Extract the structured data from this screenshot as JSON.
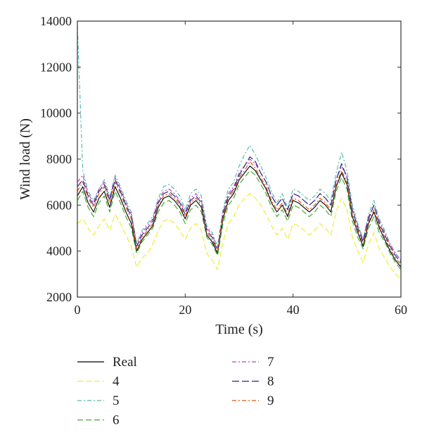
{
  "chart_data": {
    "type": "line",
    "title": "",
    "xlabel": "Time (s)",
    "ylabel": "Wind load (N)",
    "xlim": [
      0,
      60
    ],
    "ylim": [
      2000,
      14000
    ],
    "x_ticks": [
      "0",
      "20",
      "40",
      "60"
    ],
    "y_ticks": [
      "2000",
      "4000",
      "6000",
      "8000",
      "10000",
      "12000",
      "14000"
    ],
    "grid": false,
    "legend_position": "bottom",
    "x": [
      0,
      1,
      2,
      3,
      4,
      5,
      6,
      7,
      8,
      9,
      10,
      11,
      12,
      13,
      14,
      15,
      16,
      17,
      18,
      19,
      20,
      21,
      22,
      23,
      24,
      25,
      26,
      27,
      28,
      29,
      30,
      31,
      32,
      33,
      34,
      35,
      36,
      37,
      38,
      39,
      40,
      41,
      42,
      43,
      44,
      45,
      46,
      47,
      48,
      49,
      50,
      51,
      52,
      53,
      54,
      55,
      56,
      57,
      58,
      59,
      60
    ],
    "series": [
      {
        "name": "Real",
        "color": "#000000",
        "dash": "",
        "values": [
          6400,
          6800,
          6100,
          5700,
          6300,
          6600,
          5900,
          6800,
          6300,
          5700,
          5200,
          4000,
          4500,
          4800,
          5100,
          5900,
          6300,
          6400,
          6200,
          5900,
          5400,
          6000,
          6200,
          5900,
          4700,
          4400,
          3900,
          5400,
          6200,
          6500,
          7100,
          7400,
          7700,
          7500,
          7100,
          6700,
          6100,
          5700,
          6000,
          5500,
          6200,
          6100,
          5900,
          5700,
          5900,
          6200,
          6000,
          5700,
          6800,
          7400,
          6900,
          5500,
          4800,
          4200,
          5200,
          5700,
          5000,
          4500,
          4000,
          3600,
          3300
        ]
      },
      {
        "name": "4",
        "color": "#eeee33",
        "dash": "8,4",
        "values": [
          5200,
          5400,
          5000,
          4700,
          5100,
          5400,
          4900,
          5600,
          5200,
          4700,
          4200,
          3300,
          3700,
          3900,
          4300,
          4900,
          5300,
          5400,
          5200,
          4900,
          4500,
          5000,
          5200,
          4900,
          3900,
          3600,
          3200,
          4400,
          5200,
          5500,
          6000,
          6300,
          6500,
          6300,
          6000,
          5600,
          5100,
          4700,
          5000,
          4500,
          5200,
          5100,
          4900,
          4700,
          4900,
          5200,
          5000,
          4700,
          5700,
          6300,
          5800,
          4600,
          4000,
          3500,
          4300,
          4800,
          4100,
          3700,
          3300,
          3000,
          2800
        ]
      },
      {
        "name": "5",
        "color": "#55bbaa",
        "dash": "6,3,2,3",
        "values": [
          13800,
          7500,
          6600,
          6200,
          6700,
          7100,
          6400,
          7300,
          6800,
          6200,
          5700,
          4300,
          4900,
          5200,
          5500,
          6300,
          6800,
          6900,
          6700,
          6400,
          5800,
          6500,
          6700,
          6400,
          5100,
          4800,
          4200,
          5800,
          6700,
          7000,
          7700,
          8200,
          8600,
          8200,
          7700,
          7200,
          6600,
          6100,
          6500,
          5900,
          6700,
          6600,
          6400,
          6200,
          6400,
          6700,
          6500,
          6200,
          7400,
          8300,
          7500,
          6000,
          5200,
          4500,
          5600,
          6200,
          5400,
          4900,
          4300,
          3900,
          3600
        ]
      },
      {
        "name": "6",
        "color": "#44aa33",
        "dash": "8,4",
        "values": [
          6200,
          6600,
          5900,
          5500,
          6100,
          6400,
          5700,
          6600,
          6100,
          5500,
          5000,
          3900,
          4400,
          4700,
          5000,
          5700,
          6100,
          6200,
          6000,
          5700,
          5200,
          5800,
          6000,
          5700,
          4600,
          4300,
          3800,
          5200,
          6000,
          6300,
          6900,
          7200,
          7500,
          7300,
          6900,
          6500,
          5900,
          5500,
          5800,
          5300,
          6000,
          5900,
          5700,
          5500,
          5700,
          6000,
          5800,
          5500,
          6600,
          7200,
          6700,
          5300,
          4600,
          4100,
          5000,
          5500,
          4800,
          4400,
          3900,
          3500,
          3200
        ]
      },
      {
        "name": "7",
        "color": "#bb44bb",
        "dash": "6,3,2,3",
        "values": [
          7000,
          7300,
          6500,
          6100,
          6700,
          7000,
          6300,
          7200,
          6700,
          6100,
          5600,
          4300,
          4800,
          5100,
          5400,
          6200,
          6600,
          6700,
          6500,
          6200,
          5700,
          6300,
          6500,
          6200,
          5000,
          4700,
          4100,
          5700,
          6500,
          6800,
          7400,
          7700,
          8000,
          7800,
          7400,
          7000,
          6400,
          6000,
          6300,
          5800,
          6500,
          6400,
          6200,
          6000,
          6200,
          6500,
          6300,
          6000,
          7100,
          7700,
          7200,
          5800,
          5100,
          4500,
          5500,
          6000,
          5300,
          4800,
          4300,
          3900,
          3600
        ]
      },
      {
        "name": "8",
        "color": "#2a2a88",
        "dash": "10,4",
        "values": [
          6800,
          7100,
          6400,
          6000,
          6600,
          6900,
          6200,
          7100,
          6600,
          6000,
          5500,
          4200,
          4700,
          5000,
          5300,
          6100,
          6500,
          6600,
          6400,
          6100,
          5600,
          6200,
          6400,
          6100,
          4900,
          4600,
          4000,
          5600,
          6400,
          6700,
          7300,
          7700,
          8100,
          7900,
          7400,
          7000,
          6400,
          6000,
          6300,
          5800,
          6500,
          6400,
          6200,
          6000,
          6200,
          6500,
          6300,
          6000,
          7100,
          7800,
          7200,
          5800,
          5000,
          4400,
          5400,
          6000,
          5200,
          4700,
          4200,
          3800,
          3500
        ]
      },
      {
        "name": "9",
        "color": "#dd5511",
        "dash": "6,3,2,3",
        "values": [
          6600,
          7000,
          6300,
          5900,
          6500,
          6800,
          6100,
          7000,
          6500,
          5900,
          5400,
          4100,
          4600,
          4900,
          5200,
          6000,
          6400,
          6500,
          6300,
          6000,
          5500,
          6100,
          6300,
          6000,
          4800,
          4500,
          4000,
          5500,
          6300,
          6600,
          7200,
          7500,
          7900,
          7600,
          7200,
          6800,
          6200,
          5800,
          6100,
          5600,
          6300,
          6200,
          6000,
          5800,
          6000,
          6300,
          6100,
          5800,
          6900,
          7500,
          7000,
          5600,
          4900,
          4300,
          5300,
          5800,
          5100,
          4600,
          4100,
          3700,
          3400
        ]
      }
    ]
  }
}
